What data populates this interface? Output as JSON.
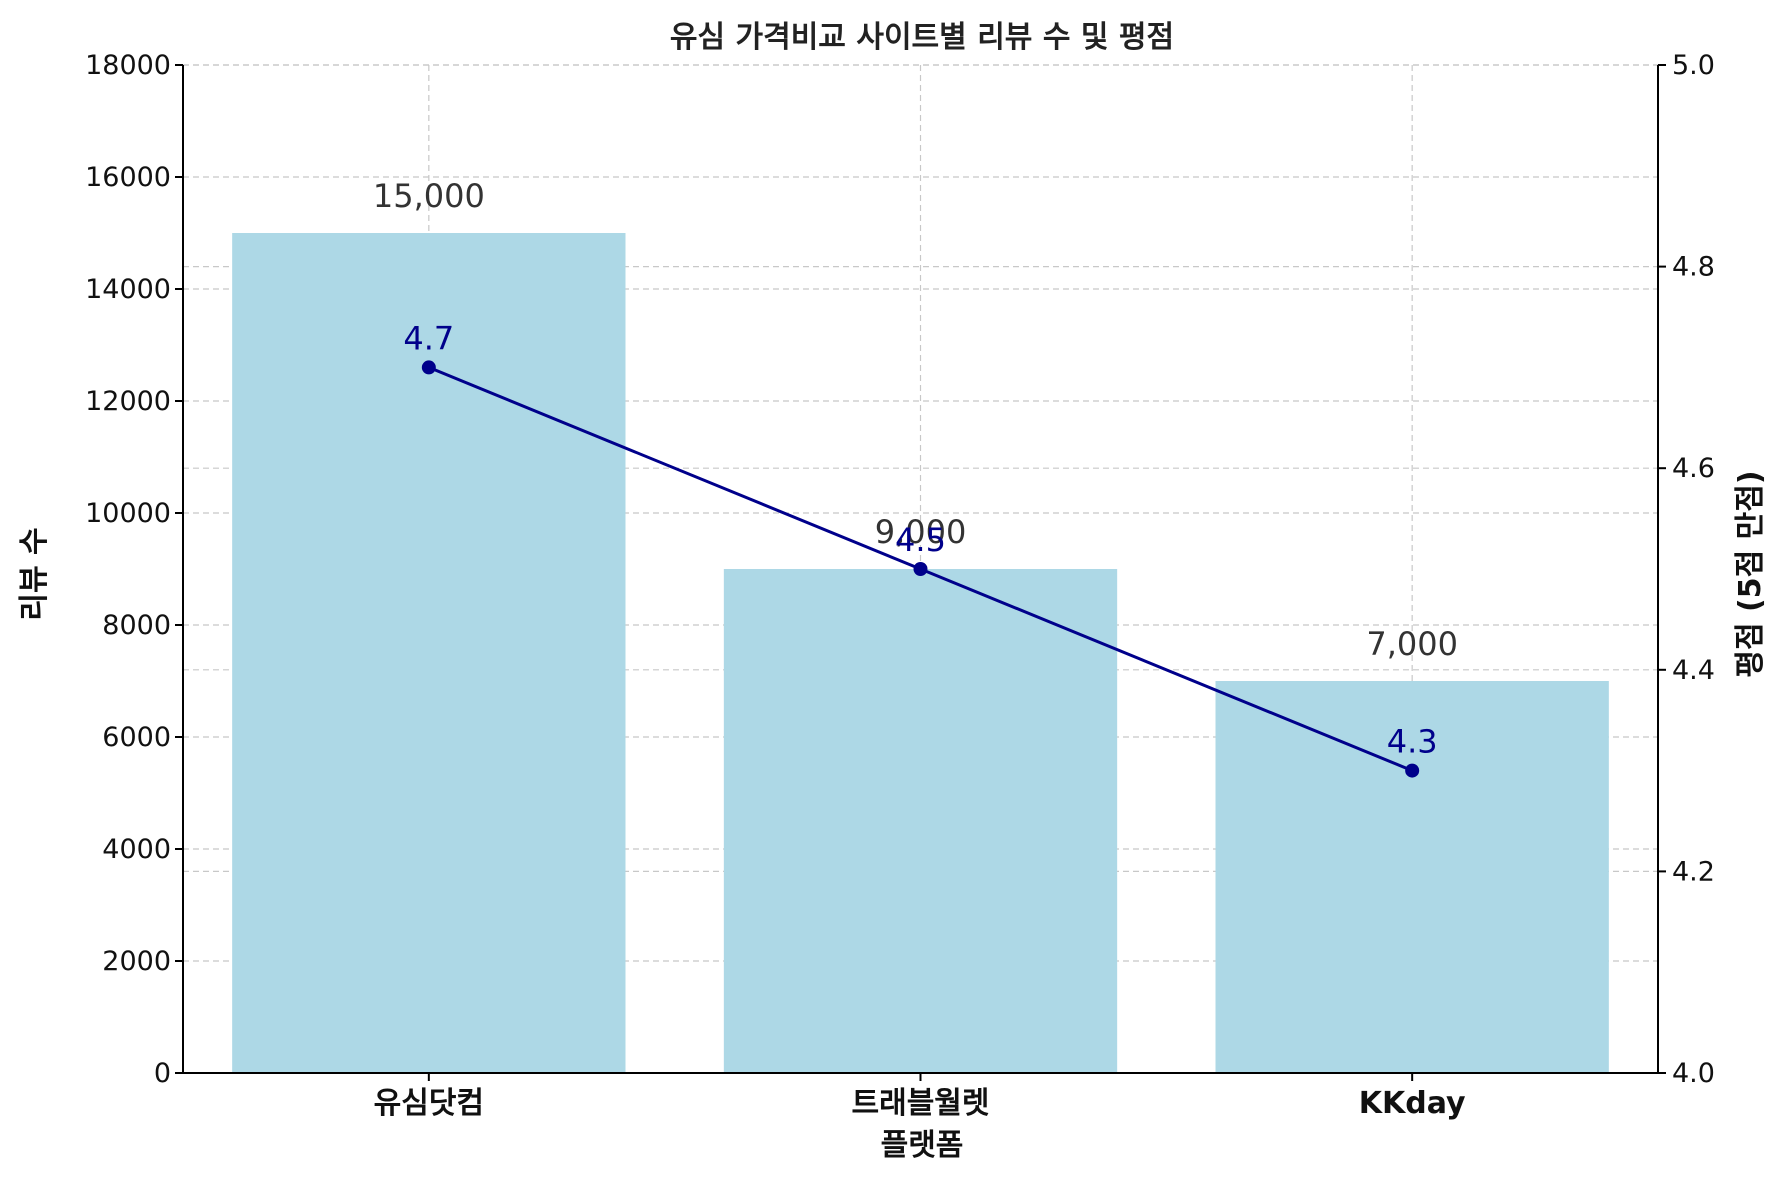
{
  "chart_data": {
    "type": "bar",
    "title": "유심 가격비교 사이트별 리뷰 수 및 평점",
    "xlabel": "플랫폼",
    "ylabel": "리뷰 수",
    "y2label": "평점 (5점 만점)",
    "categories": [
      "유심닷컴",
      "트래블월렛",
      "KKday"
    ],
    "series": [
      {
        "type": "bar",
        "axis": "left",
        "values": [
          15000,
          9000,
          7000
        ],
        "value_labels": [
          "15,000",
          "9,000",
          "7,000"
        ],
        "color": "#add8e6"
      },
      {
        "type": "line",
        "axis": "right",
        "values": [
          4.7,
          4.5,
          4.3
        ],
        "value_labels": [
          "4.7",
          "4.5",
          "4.3"
        ],
        "color": "#00008b",
        "marker": "circle"
      }
    ],
    "ylim": [
      0,
      18000
    ],
    "yticks": [
      "0",
      "2000",
      "4000",
      "6000",
      "8000",
      "10000",
      "12000",
      "14000",
      "16000",
      "18000"
    ],
    "y2lim": [
      4.0,
      5.0
    ],
    "y2ticks": [
      "4.0",
      "4.2",
      "4.4",
      "4.6",
      "4.8",
      "5.0"
    ],
    "grid": true
  }
}
